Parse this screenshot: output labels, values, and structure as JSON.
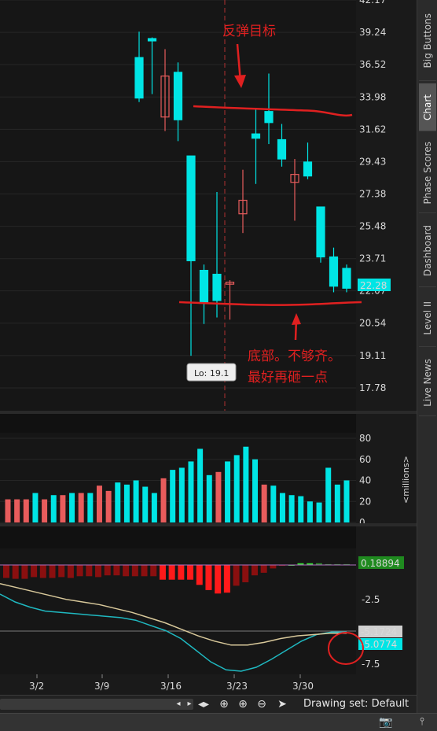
{
  "price_axis": {
    "ticks": [
      "42.17",
      "39.24",
      "36.52",
      "33.98",
      "31.62",
      "29.43",
      "27.38",
      "25.48",
      "23.71",
      "22.07",
      "20.54",
      "19.11",
      "17.78"
    ],
    "current_price": "22.28"
  },
  "low_label": "Lo: 19.1",
  "annotations": {
    "target": "反弹目标",
    "bottom_line1": "底部。不够齐。",
    "bottom_line2": "最好再砸一点"
  },
  "volume_axis": {
    "ticks": [
      "80",
      "60",
      "40",
      "20",
      "0"
    ],
    "unit": "<millions>"
  },
  "macd_axis": {
    "value_badge": "0.18894",
    "tick_mid": "-2.5",
    "badge_slow": "-5.1724",
    "badge_fast": "-5.0774",
    "tick_low": "-7.5"
  },
  "date_axis": {
    "labels": [
      "3/2",
      "3/9",
      "3/16",
      "3/23",
      "3/30"
    ]
  },
  "toolbar": {
    "drawing_set": "Drawing set: Default"
  },
  "sidebar": {
    "tabs": [
      "Big Buttons",
      "Chart",
      "Phase Scores",
      "Dashboard",
      "Level II",
      "Live News"
    ]
  },
  "colors": {
    "up": "#00e5e5",
    "down": "#e85c5c",
    "annotation": "#e02020",
    "price_badge": "#00e5e5",
    "macd_badge": "#1f8a1f"
  },
  "chart_data": [
    {
      "type": "candlestick",
      "candles": [
        {
          "o": 33.9,
          "h": 39.3,
          "l": 33.6,
          "c": 37.1,
          "dir": "up"
        },
        {
          "o": 38.7,
          "h": 38.8,
          "l": 34.2,
          "c": 38.5,
          "dir": "up"
        },
        {
          "o": 32.5,
          "h": 37.8,
          "l": 31.5,
          "c": 35.6,
          "dir": "down"
        },
        {
          "o": 35.9,
          "h": 36.7,
          "l": 30.8,
          "c": 32.3,
          "dir": "up"
        },
        {
          "o": 29.8,
          "h": 29.8,
          "l": 19.1,
          "c": 23.6,
          "dir": "up"
        },
        {
          "o": 23.1,
          "h": 23.4,
          "l": 20.5,
          "c": 21.5,
          "dir": "up"
        },
        {
          "o": 21.6,
          "h": 27.5,
          "l": 20.8,
          "c": 22.9,
          "dir": "up"
        },
        {
          "o": 22.5,
          "h": 22.6,
          "l": 20.7,
          "c": 22.4,
          "dir": "down"
        },
        {
          "o": 26.2,
          "h": 28.9,
          "l": 25.1,
          "c": 27.0,
          "dir": "down"
        },
        {
          "o": 31.3,
          "h": 33.1,
          "l": 28.0,
          "c": 31.0,
          "dir": "up"
        },
        {
          "o": 32.9,
          "h": 35.8,
          "l": 30.6,
          "c": 32.1,
          "dir": "up"
        },
        {
          "o": 30.9,
          "h": 32.0,
          "l": 29.1,
          "c": 29.6,
          "dir": "up"
        },
        {
          "o": 28.1,
          "h": 29.6,
          "l": 25.8,
          "c": 28.6,
          "dir": "down"
        },
        {
          "o": 29.4,
          "h": 30.7,
          "l": 28.3,
          "c": 28.5,
          "dir": "up"
        },
        {
          "o": 26.6,
          "h": 26.6,
          "l": 23.5,
          "c": 23.8,
          "dir": "up"
        },
        {
          "o": 23.8,
          "h": 24.3,
          "l": 22.0,
          "c": 22.3,
          "dir": "up"
        },
        {
          "o": 23.2,
          "h": 23.4,
          "l": 22.0,
          "c": 22.2,
          "dir": "up"
        }
      ],
      "trend_lines": [
        {
          "name": "rebound-target-line",
          "y": 32.9
        },
        {
          "name": "bottom-support-line",
          "y": 21.7
        }
      ]
    },
    {
      "type": "bar",
      "unit": "millions",
      "values": [
        22,
        22,
        22,
        28,
        22,
        26,
        26,
        28,
        28,
        28,
        35,
        30,
        38,
        36,
        40,
        34,
        28,
        42,
        50,
        52,
        58,
        70,
        45,
        48,
        58,
        64,
        72,
        60,
        36,
        35,
        28,
        26,
        25,
        20,
        19,
        52,
        36,
        40
      ],
      "colors": [
        "down",
        "down",
        "down",
        "up",
        "down",
        "up",
        "down",
        "up",
        "down",
        "up",
        "down",
        "down",
        "up",
        "up",
        "up",
        "up",
        "up",
        "down",
        "up",
        "up",
        "up",
        "up",
        "up",
        "down",
        "up",
        "up",
        "up",
        "up",
        "down",
        "up",
        "up",
        "up",
        "up",
        "up",
        "up",
        "up",
        "up",
        "up"
      ]
    },
    {
      "type": "bar+line",
      "histogram": [
        -1.5,
        -1.6,
        -1.6,
        -1.4,
        -1.5,
        -1.5,
        -1.4,
        -1.5,
        -1.3,
        -1.3,
        -1.4,
        -1.2,
        -1.2,
        -1.3,
        -1.3,
        -1.3,
        -1.3,
        -1.7,
        -1.7,
        -1.7,
        -1.7,
        -2.3,
        -2.9,
        -3.3,
        -3.2,
        -2.4,
        -2.0,
        -1.2,
        -0.9,
        -0.4,
        -0.1,
        -0.0,
        0.2,
        0.2,
        0.2,
        0.1,
        0.1,
        0.1
      ],
      "macd": [
        -2.2,
        -2.8,
        -3.2,
        -3.5,
        -3.6,
        -3.7,
        -3.8,
        -3.9,
        -4.0,
        -4.2,
        -4.6,
        -5.0,
        -5.6,
        -6.5,
        -7.4,
        -8.0,
        -8.1,
        -7.8,
        -7.2,
        -6.5,
        -5.8,
        -5.3,
        -5.1,
        -5.1
      ],
      "signal": [
        -1.4,
        -1.7,
        -2.0,
        -2.3,
        -2.6,
        -2.8,
        -3.0,
        -3.3,
        -3.6,
        -4.0,
        -4.4,
        -4.9,
        -5.4,
        -5.8,
        -6.1,
        -6.1,
        -5.9,
        -5.6,
        -5.4,
        -5.3,
        -5.2,
        -5.2
      ]
    }
  ]
}
